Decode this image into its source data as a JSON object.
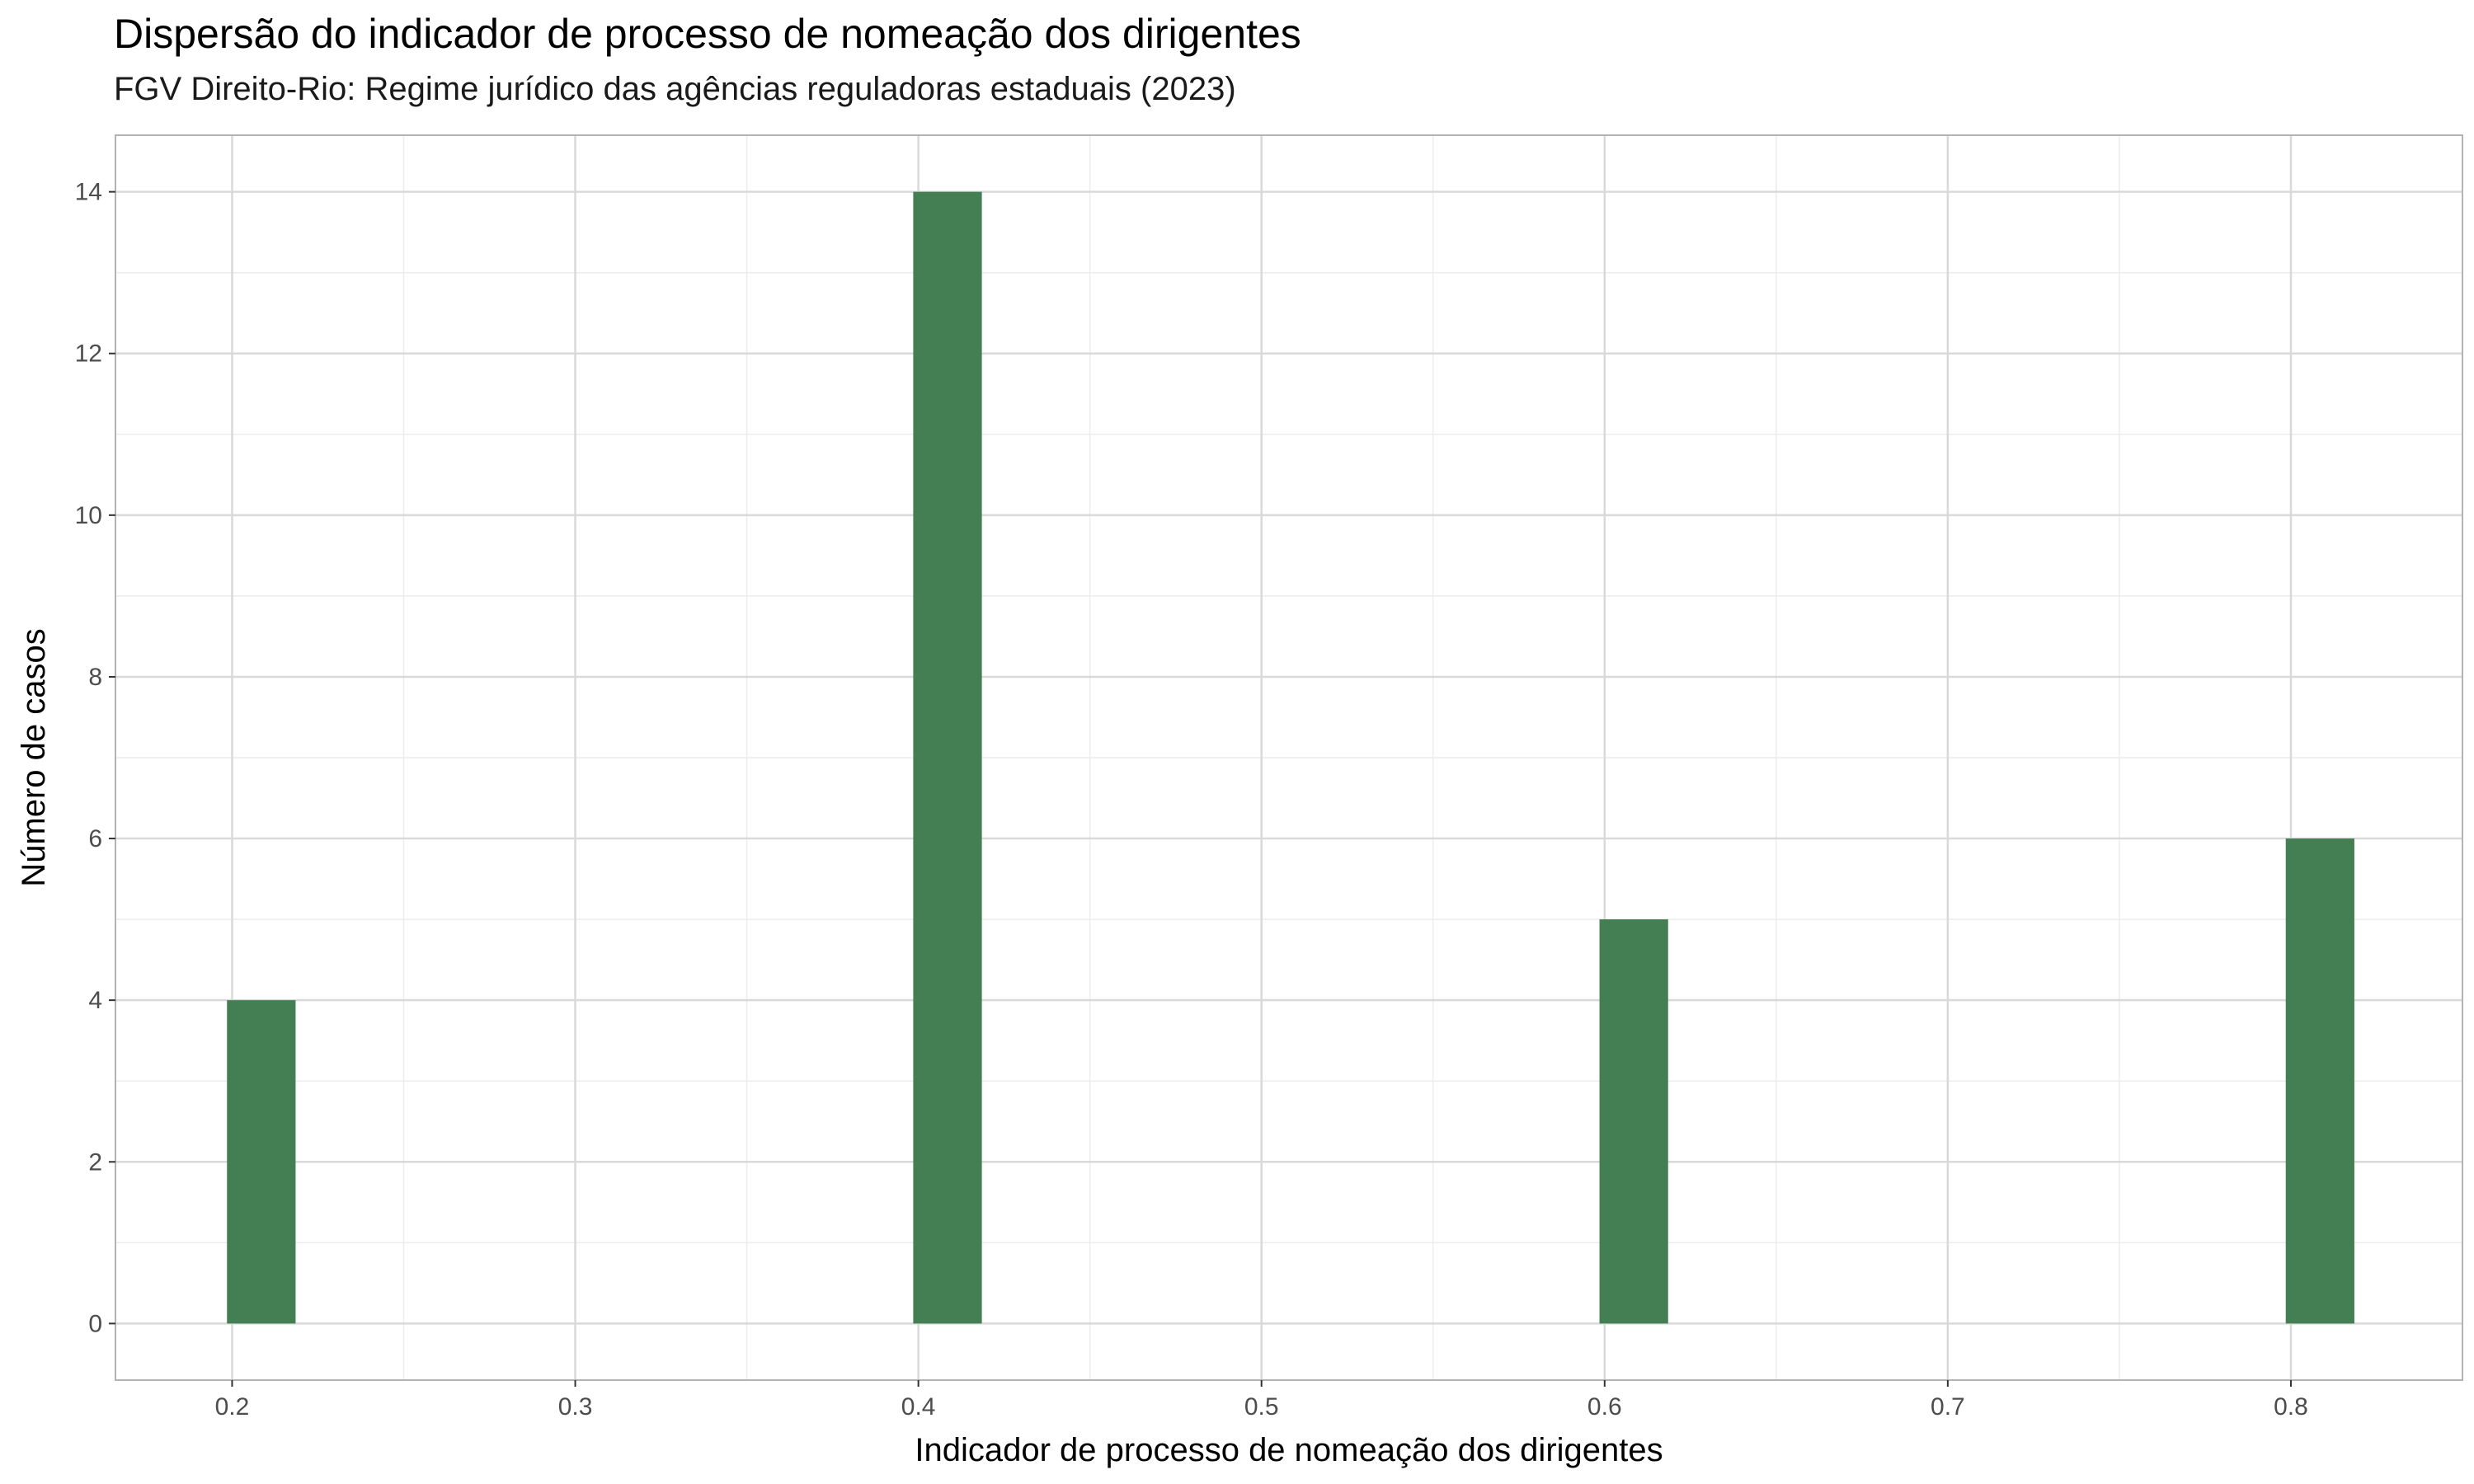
{
  "chart_data": {
    "type": "bar",
    "title": "Dispersão do indicador de processo de nomeação dos dirigentes",
    "subtitle": "FGV Direito-Rio: Regime jurídico das agências reguladoras estaduais (2023)",
    "xlabel": "Indicador de processo de nomeação dos dirigentes",
    "ylabel": "Número de casos",
    "x": [
      0.2,
      0.4,
      0.6,
      0.8
    ],
    "values": [
      4,
      14,
      5,
      6
    ],
    "bar_width": 0.02,
    "xlim": [
      0.166,
      0.85
    ],
    "ylim": [
      -0.7,
      14.7
    ],
    "x_ticks": [
      0.2,
      0.3,
      0.4,
      0.5,
      0.6,
      0.7,
      0.8
    ],
    "x_tick_labels": [
      "0.2",
      "0.3",
      "0.4",
      "0.5",
      "0.6",
      "0.7",
      "0.8"
    ],
    "y_ticks": [
      0,
      2,
      4,
      6,
      8,
      10,
      12,
      14
    ],
    "y_tick_labels": [
      "0",
      "2",
      "4",
      "6",
      "8",
      "10",
      "12",
      "14"
    ],
    "grid": true,
    "legend": "none",
    "colors": {
      "bar": "#437f53",
      "grid_major": "#d9d9d9",
      "grid_minor": "#ececec",
      "panel_border": "#b3b3b3"
    }
  }
}
